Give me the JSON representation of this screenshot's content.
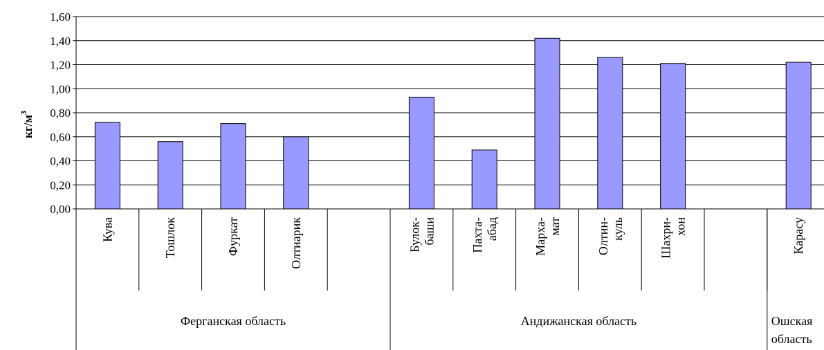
{
  "chart_data": {
    "type": "bar",
    "ylabel": "кг/м",
    "ylabel_sup": "3",
    "ylim": [
      0,
      1.6
    ],
    "yticks": [
      "0,00",
      "0,20",
      "0,40",
      "0,60",
      "0,80",
      "1,00",
      "1,20",
      "1,40",
      "1,60"
    ],
    "grid": true,
    "bar_color": "#9999ff",
    "categories": [
      {
        "lines": [
          "Кува"
        ],
        "value": 0.72
      },
      {
        "lines": [
          "Тошлок"
        ],
        "value": 0.56
      },
      {
        "lines": [
          "Фуркат"
        ],
        "value": 0.71
      },
      {
        "lines": [
          "Олтиарик"
        ],
        "value": 0.6
      },
      {
        "lines": [],
        "value": null
      },
      {
        "lines": [
          "Булок-",
          "баши"
        ],
        "value": 0.93
      },
      {
        "lines": [
          "Пахта-",
          "абад"
        ],
        "value": 0.49
      },
      {
        "lines": [
          "Марха-",
          "мат"
        ],
        "value": 1.42
      },
      {
        "lines": [
          "Олтин-",
          "куль"
        ],
        "value": 1.26
      },
      {
        "lines": [
          "Шахри-",
          "хон"
        ],
        "value": 1.21
      },
      {
        "lines": [],
        "value": null
      },
      {
        "lines": [
          "Карасу"
        ],
        "value": 1.22
      }
    ],
    "groups": [
      {
        "lines": [
          "Ферганская область"
        ],
        "span": 5
      },
      {
        "lines": [
          "Андижанская область"
        ],
        "span": 6
      },
      {
        "lines": [
          "Ошская",
          "область"
        ],
        "span": 1
      }
    ]
  }
}
